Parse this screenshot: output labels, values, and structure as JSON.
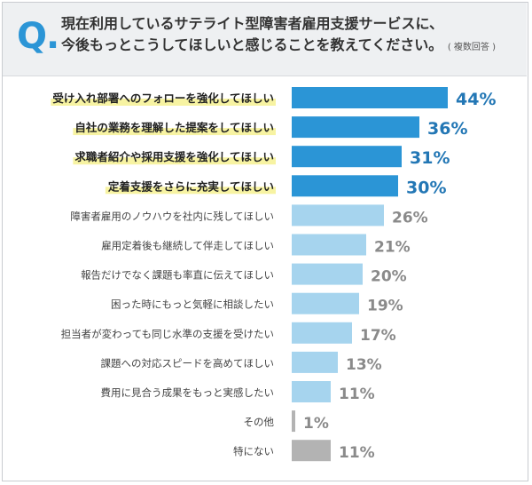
{
  "question": {
    "marker": "Q.",
    "line1": "現在利用しているサテライト型障害者雇用支援サービスに、",
    "line2": "今後もっとこうしてほしいと感じることを教えてください。",
    "note": "( 複数回答 )"
  },
  "colors": {
    "highlight_bar": "#2b95d6",
    "normal_bar": "#a6d4ee",
    "other_bar": "#b3b3b3",
    "highlight_label_bg": "#f7f3a2",
    "highlight_value": "#2377b5",
    "normal_value": "#8a8a8a"
  },
  "chart_data": {
    "type": "bar",
    "orientation": "horizontal",
    "unit": "%",
    "xlim": [
      0,
      44
    ],
    "categories": [
      "受け入れ部署へのフォローを強化してほしい",
      "自社の業務を理解した提案をしてほしい",
      "求職者紹介や採用支援を強化してほしい",
      "定着支援をさらに充実してほしい",
      "障害者雇用のノウハウを社内に残してほしい",
      "雇用定着後も継続して伴走してほしい",
      "報告だけでなく課題も率直に伝えてほしい",
      "困った時にもっと気軽に相談したい",
      "担当者が変わっても同じ水準の支援を受けたい",
      "課題への対応スピードを高めてほしい",
      "費用に見合う成果をもっと実感したい",
      "その他",
      "特にない"
    ],
    "values": [
      44,
      36,
      31,
      30,
      26,
      21,
      20,
      19,
      17,
      13,
      11,
      1,
      11
    ],
    "value_labels": [
      "44%",
      "36%",
      "31%",
      "30%",
      "26%",
      "21%",
      "20%",
      "19%",
      "17%",
      "13%",
      "11%",
      "1%",
      "11%"
    ],
    "highlighted": [
      true,
      true,
      true,
      true,
      false,
      false,
      false,
      false,
      false,
      false,
      false,
      false,
      false
    ],
    "bar_style": [
      "highlight",
      "highlight",
      "highlight",
      "highlight",
      "normal",
      "normal",
      "normal",
      "normal",
      "normal",
      "normal",
      "normal",
      "other",
      "other"
    ]
  }
}
